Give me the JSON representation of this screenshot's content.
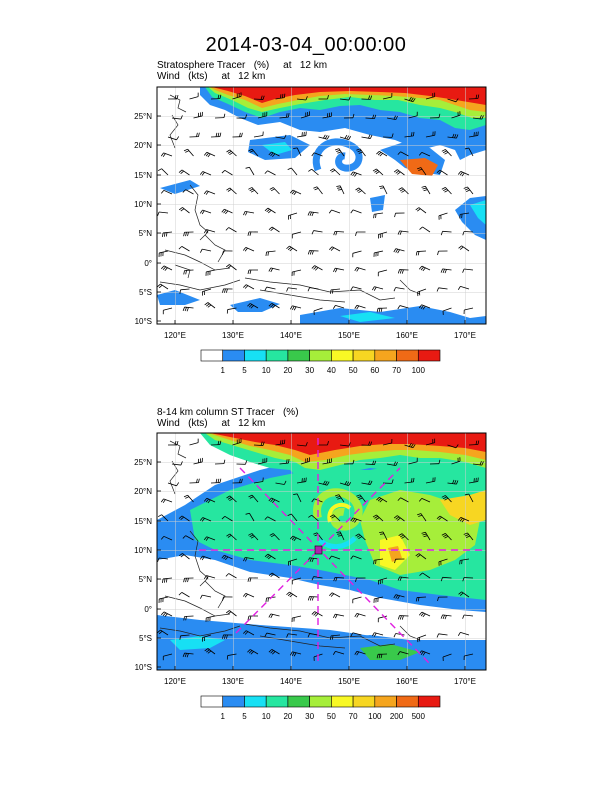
{
  "title": "2014-03-04_00:00:00",
  "panel1": {
    "line1": "Stratosphere Tracer   (%)     at   12 km",
    "line2": "Wind   (kts)     at   12 km",
    "colorbar": {
      "labels": [
        "1",
        "5",
        "10",
        "20",
        "30",
        "40",
        "50",
        "60",
        "70",
        "100"
      ],
      "colors": [
        "#ffffff",
        "#2a8cf2",
        "#17e0f4",
        "#26e6a0",
        "#39c94b",
        "#a6ee3a",
        "#f8f825",
        "#f7d622",
        "#f5a51e",
        "#f06a16",
        "#e81a12"
      ]
    }
  },
  "panel2": {
    "line1": "8-14 km column ST Tracer   (%)",
    "line2": "Wind   (kts)     at   12 km",
    "colorbar": {
      "labels": [
        "1",
        "5",
        "10",
        "20",
        "30",
        "50",
        "70",
        "100",
        "200",
        "500"
      ],
      "colors": [
        "#ffffff",
        "#2a8cf2",
        "#17e0f4",
        "#26e6a0",
        "#39c94b",
        "#a6ee3a",
        "#f8f825",
        "#f7d622",
        "#f5a51e",
        "#f06a16",
        "#e81a12"
      ]
    }
  },
  "axes": {
    "lat_labels": [
      "25°N",
      "20°N",
      "15°N",
      "10°N",
      "5°N",
      "0°",
      "5°S",
      "10°S"
    ],
    "lon_labels": [
      "120°E",
      "130°E",
      "140°E",
      "150°E",
      "160°E",
      "170°E"
    ]
  }
}
